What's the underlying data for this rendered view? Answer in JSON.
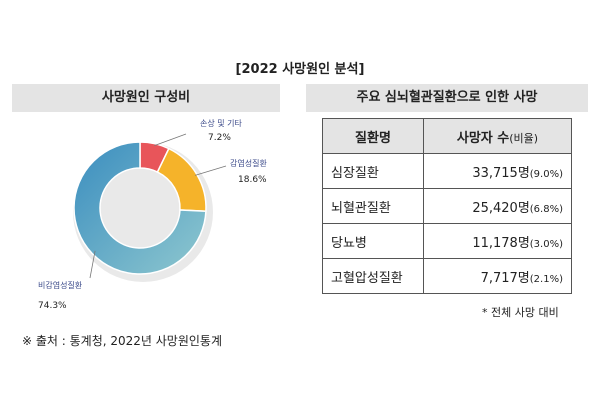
{
  "page_title": "[2022 사망원인 분석]",
  "left_panel": {
    "title": "사망원인 구성비"
  },
  "right_panel": {
    "title": "주요 심뇌혈관질환으로 인한 사망"
  },
  "chart_data": [
    {
      "type": "pie",
      "title": "사망원인 구성비",
      "slices": [
        {
          "label": "손상 및 기타",
          "value": 7.2,
          "value_label": "7.2%",
          "color": "#e8555a"
        },
        {
          "label": "감염성질환",
          "value": 18.6,
          "value_label": "18.6%",
          "color": "#f5b32a"
        },
        {
          "label": "비감염성질환",
          "value": 74.3,
          "value_label": "74.3%",
          "color": "#3a8dbf",
          "color_end": "#8fc8cf"
        }
      ]
    },
    {
      "type": "table",
      "title": "주요 심뇌혈관질환으로 인한 사망",
      "columns": [
        "질환명",
        "사망자 수",
        "(비율)"
      ],
      "rows": [
        {
          "name": "심장질환",
          "deaths": "33,715명",
          "ratio": "(9.0%)"
        },
        {
          "name": "뇌혈관질환",
          "deaths": "25,420명",
          "ratio": "(6.8%)"
        },
        {
          "name": "당뇨병",
          "deaths": "11,178명",
          "ratio": "(3.0%)"
        },
        {
          "name": "고혈압성질환",
          "deaths": "7,717명",
          "ratio": "(2.1%)"
        }
      ]
    }
  ],
  "footnote": "* 전체 사망 대비",
  "source": "※ 출처 : 통계청, 2022년 사망원인통계"
}
